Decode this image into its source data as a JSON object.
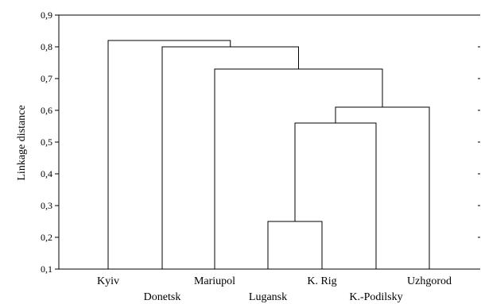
{
  "chart_data": {
    "type": "dendrogram",
    "ylabel": "Linkage distance",
    "ylim": [
      0.1,
      0.9
    ],
    "yticks": [
      "0,1",
      "0,2",
      "0,3",
      "0,4",
      "0,5",
      "0,6",
      "0,7",
      "0,8",
      "0,9"
    ],
    "leaves": [
      "Kyiv",
      "Donetsk",
      "Mariupol",
      "Lugansk",
      "K. Rig",
      "K.-Podilsky",
      "Uzhgorod"
    ],
    "merges": [
      {
        "left": "Lugansk",
        "right": "K. Rig",
        "distance": 0.25
      },
      {
        "left": "Lugansk+K. Rig",
        "right": "K.-Podilsky",
        "distance": 0.56
      },
      {
        "left": "Lugansk+K. Rig+K.-Podilsky",
        "right": "Uzhgorod",
        "distance": 0.61
      },
      {
        "left": "Mariupol",
        "right": "Lugansk+K. Rig+K.-Podilsky+Uzhgorod",
        "distance": 0.73
      },
      {
        "left": "Donetsk",
        "right": "Mariupol+Lugansk+K. Rig+K.-Podilsky+Uzhgorod",
        "distance": 0.8
      },
      {
        "left": "Kyiv",
        "right": "Donetsk+Mariupol+Lugansk+K. Rig+K.-Podilsky+Uzhgorod",
        "distance": 0.82
      }
    ]
  }
}
